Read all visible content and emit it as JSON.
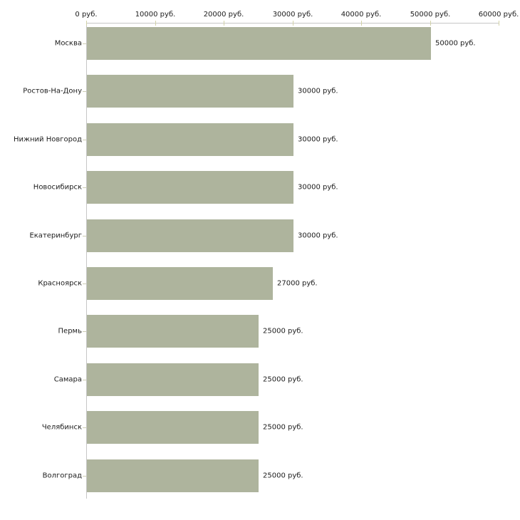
{
  "chart_data": {
    "type": "bar",
    "orientation": "horizontal",
    "title": "",
    "xlabel": "",
    "ylabel": "",
    "unit": "руб.",
    "xlim": [
      0,
      60000
    ],
    "grid": false,
    "legend": false,
    "categories": [
      "Москва",
      "Ростов-На-Дону",
      "Нижний Новгород",
      "Новосибирск",
      "Екатеринбург",
      "Красноярск",
      "Пермь",
      "Самара",
      "Челябинск",
      "Волгоград"
    ],
    "values": [
      50000,
      30000,
      30000,
      30000,
      30000,
      27000,
      25000,
      25000,
      25000,
      25000
    ],
    "value_labels": [
      "50000 руб.",
      "30000 руб.",
      "30000 руб.",
      "30000 руб.",
      "30000 руб.",
      "27000 руб.",
      "25000 руб.",
      "25000 руб.",
      "25000 руб.",
      "25000 руб."
    ],
    "x_ticks": [
      0,
      10000,
      20000,
      30000,
      40000,
      50000,
      60000
    ],
    "x_tick_labels": [
      "0 руб.",
      "10000 руб.",
      "20000 руб.",
      "30000 руб.",
      "40000 руб.",
      "50000 руб.",
      "60000 руб."
    ],
    "colors": {
      "bar": "#aeb49d",
      "axis_line": "#c6c6c6",
      "axis_tick": "#d2d2a8",
      "category_tick": "#ccccb3",
      "text": "#1c1c1c",
      "background": "#ffffff"
    }
  }
}
